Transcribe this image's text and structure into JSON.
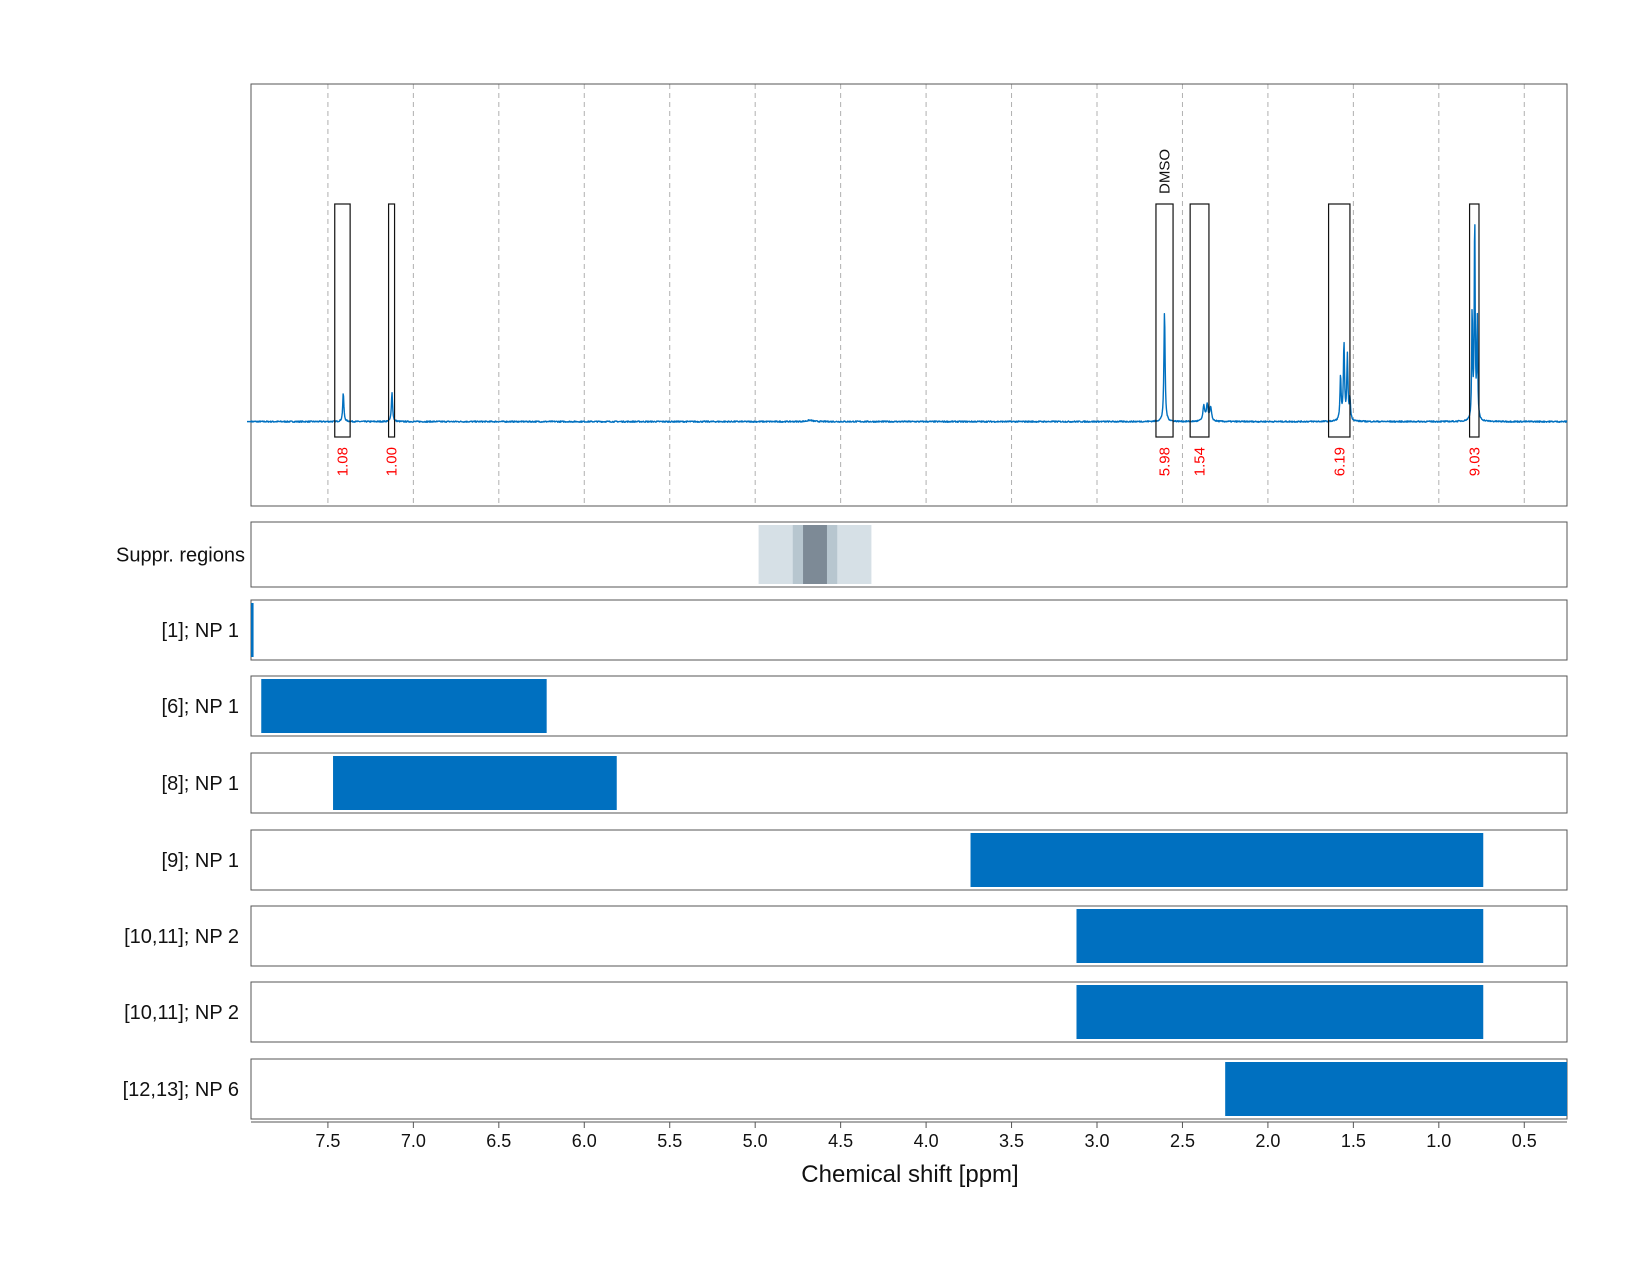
{
  "chart_data": {
    "type": "nmr-spectrum",
    "xlabel": "Chemical shift [ppm]",
    "xlim": [
      7.95,
      0.25
    ],
    "x_reversed": true,
    "x_ticks": [
      7.5,
      7.0,
      6.5,
      6.0,
      5.5,
      5.0,
      4.5,
      4.0,
      3.5,
      3.0,
      2.5,
      2.0,
      1.5,
      1.0,
      0.5
    ],
    "x_tick_labels": [
      "7.5",
      "7.0",
      "6.5",
      "6.0",
      "5.5",
      "5.0",
      "4.5",
      "4.0",
      "3.5",
      "3.0",
      "2.5",
      "2.0",
      "1.5",
      "1.0",
      "0.5"
    ],
    "grid": true,
    "spectrum": {
      "color": "#0070c0",
      "baseline": 0.0,
      "ylim": [
        -0.25,
        1.0
      ],
      "peaks": [
        {
          "ppm": 7.41,
          "height": 0.085,
          "width": 0.004
        },
        {
          "ppm": 7.125,
          "height": 0.088,
          "width": 0.004
        },
        {
          "ppm": 2.605,
          "height": 0.33,
          "width": 0.004
        },
        {
          "ppm": 2.375,
          "height": 0.045,
          "width": 0.006
        },
        {
          "ppm": 2.355,
          "height": 0.05,
          "width": 0.006
        },
        {
          "ppm": 2.335,
          "height": 0.04,
          "width": 0.006
        },
        {
          "ppm": 1.575,
          "height": 0.13,
          "width": 0.004
        },
        {
          "ppm": 1.555,
          "height": 0.23,
          "width": 0.004
        },
        {
          "ppm": 1.535,
          "height": 0.19,
          "width": 0.004
        },
        {
          "ppm": 1.52,
          "height": 0.06,
          "width": 0.004
        },
        {
          "ppm": 0.805,
          "height": 0.33,
          "width": 0.003
        },
        {
          "ppm": 0.79,
          "height": 0.62,
          "width": 0.003
        },
        {
          "ppm": 0.775,
          "height": 0.3,
          "width": 0.003
        },
        {
          "ppm": 4.68,
          "height": 0.004,
          "width": 0.02
        }
      ],
      "integrals": [
        {
          "start": 7.46,
          "end": 7.37,
          "value": "1.08",
          "color": "#ff0000"
        },
        {
          "start": 7.145,
          "end": 7.11,
          "value": "1.00",
          "color": "#ff0000"
        },
        {
          "start": 2.655,
          "end": 2.555,
          "value": "5.98",
          "color": "#ff0000"
        },
        {
          "start": 2.455,
          "end": 2.345,
          "value": "1.54",
          "color": "#ff0000"
        },
        {
          "start": 1.645,
          "end": 1.52,
          "value": "6.19",
          "color": "#ff0000"
        },
        {
          "start": 0.82,
          "end": 0.765,
          "value": "9.03",
          "color": "#ff0000"
        }
      ],
      "annotations": [
        {
          "ppm": 2.605,
          "text": "DMSO"
        }
      ]
    },
    "suppressed_regions": {
      "label": "Suppr. regions",
      "regions": [
        {
          "start": 4.98,
          "end": 4.32,
          "color": "#d6e0e6"
        },
        {
          "start": 4.78,
          "end": 4.52,
          "color": "#b7c6cf"
        },
        {
          "start": 4.72,
          "end": 4.58,
          "color": "#7d8a96"
        }
      ]
    },
    "rows": [
      {
        "label": "[1]; NP 1",
        "start": 7.95,
        "end": 7.935,
        "color": "#0070c0"
      },
      {
        "label": "[6]; NP 1",
        "start": 7.89,
        "end": 6.22,
        "color": "#0070c0"
      },
      {
        "label": "[8]; NP 1",
        "start": 7.47,
        "end": 5.81,
        "color": "#0070c0"
      },
      {
        "label": "[9]; NP 1",
        "start": 3.74,
        "end": 0.74,
        "color": "#0070c0"
      },
      {
        "label": "[10,11]; NP 2",
        "start": 3.12,
        "end": 0.74,
        "color": "#0070c0"
      },
      {
        "label": "[10,11]; NP 2",
        "start": 3.12,
        "end": 0.74,
        "color": "#0070c0"
      },
      {
        "label": "[12,13]; NP 6",
        "start": 2.25,
        "end": 0.25,
        "color": "#0070c0"
      }
    ]
  }
}
